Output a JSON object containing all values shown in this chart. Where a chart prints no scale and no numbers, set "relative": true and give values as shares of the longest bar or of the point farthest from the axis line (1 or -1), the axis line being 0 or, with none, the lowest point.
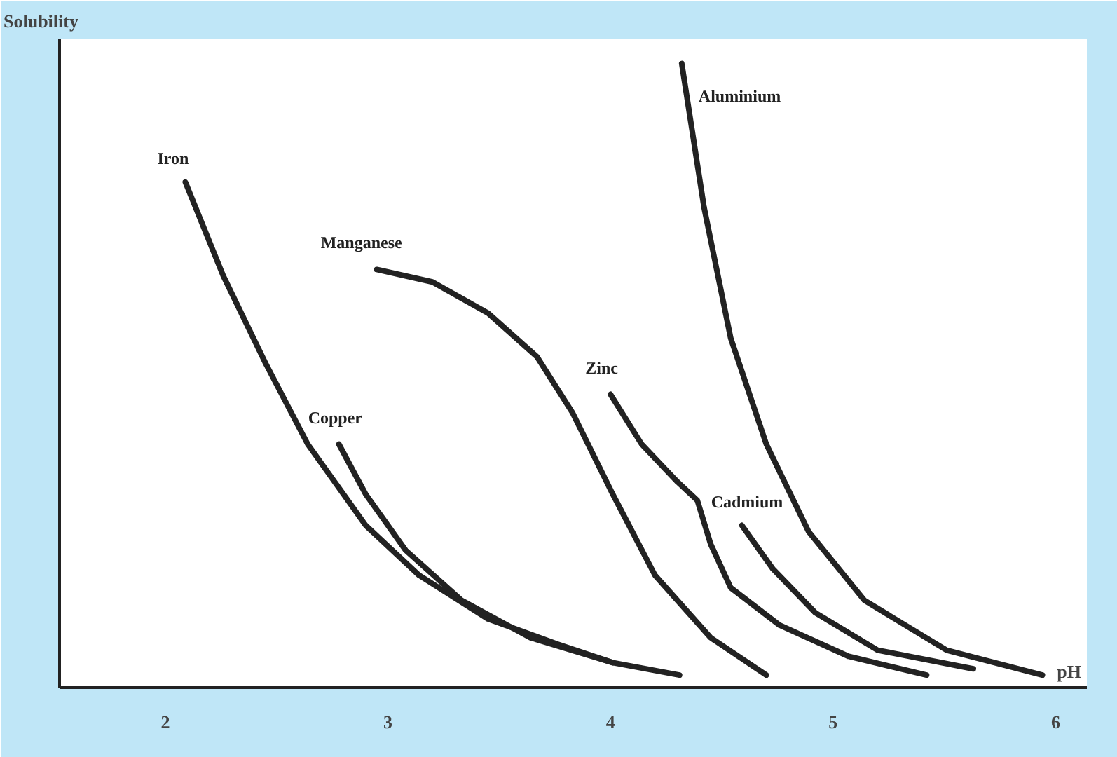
{
  "chart_data": {
    "type": "line",
    "ylabel": "Solubility",
    "xlabel": "pH",
    "relative": true,
    "xlim": [
      1.525,
      6.14
    ],
    "xticks": [
      2,
      3,
      4,
      5,
      6
    ],
    "tick_labels": "x",
    "grid": false,
    "marker": "none",
    "line_style": "solid",
    "series": [
      {
        "name": "Iron",
        "color": "#222222",
        "x": [
          2.09,
          2.26,
          2.45,
          2.64,
          2.9,
          3.14,
          3.45,
          3.76,
          4.01
        ],
        "values": [
          0.81,
          0.66,
          0.52,
          0.39,
          0.26,
          0.18,
          0.11,
          0.07,
          0.04
        ]
      },
      {
        "name": "Copper",
        "color": "#222222",
        "x": [
          2.78,
          2.9,
          3.08,
          3.33,
          3.64,
          4.01,
          4.31
        ],
        "values": [
          0.39,
          0.31,
          0.22,
          0.14,
          0.08,
          0.04,
          0.02
        ]
      },
      {
        "name": "Manganese",
        "color": "#222222",
        "x": [
          2.95,
          3.2,
          3.45,
          3.67,
          3.83,
          4.01,
          4.2,
          4.45,
          4.7
        ],
        "values": [
          0.67,
          0.65,
          0.6,
          0.53,
          0.44,
          0.31,
          0.18,
          0.08,
          0.02
        ]
      },
      {
        "name": "Zinc",
        "color": "#222222",
        "x": [
          4.0,
          4.14,
          4.3,
          4.39,
          4.45,
          4.54,
          4.76,
          5.07,
          5.42
        ],
        "values": [
          0.47,
          0.39,
          0.33,
          0.3,
          0.23,
          0.16,
          0.1,
          0.05,
          0.02
        ]
      },
      {
        "name": "Cadmium",
        "color": "#222222",
        "x": [
          4.59,
          4.73,
          4.92,
          5.2,
          5.63
        ],
        "values": [
          0.26,
          0.19,
          0.12,
          0.06,
          0.03
        ]
      },
      {
        "name": "Aluminium",
        "color": "#222222",
        "x": [
          4.32,
          4.42,
          4.54,
          4.7,
          4.89,
          5.14,
          5.51,
          5.94
        ],
        "values": [
          1.0,
          0.77,
          0.56,
          0.39,
          0.25,
          0.14,
          0.06,
          0.02
        ]
      }
    ]
  }
}
